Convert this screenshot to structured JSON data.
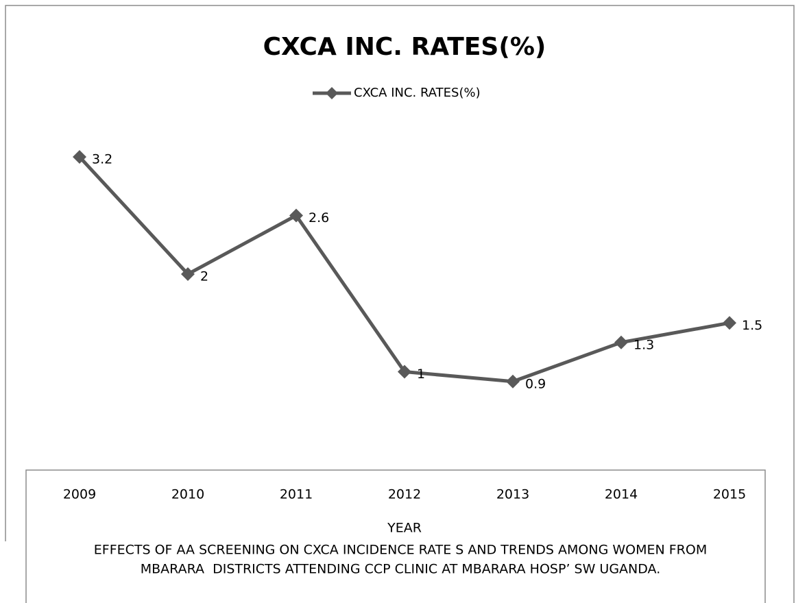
{
  "chart_data": {
    "type": "line",
    "title": "CXCA INC. RATES(%)",
    "categories": [
      "2009",
      "2010",
      "2011",
      "2012",
      "2013",
      "2014",
      "2015"
    ],
    "series": [
      {
        "name": "CXCA INC. RATES(%)",
        "color": "#595959",
        "values": [
          3.2,
          2,
          2.6,
          1,
          0.9,
          1.3,
          1.5
        ]
      }
    ],
    "ylim": [
      0,
      4
    ],
    "xlabel": "YEAR",
    "caption": [
      "EFFECTS OF AA SCREENING ON CXCA INCIDENCE RATE S AND TRENDS AMONG WOMEN FROM",
      "MBARARA  DISTRICTS ATTENDING CCP CLINIC AT MBARARA HOSP’ SW UGANDA."
    ],
    "legend": "top"
  }
}
